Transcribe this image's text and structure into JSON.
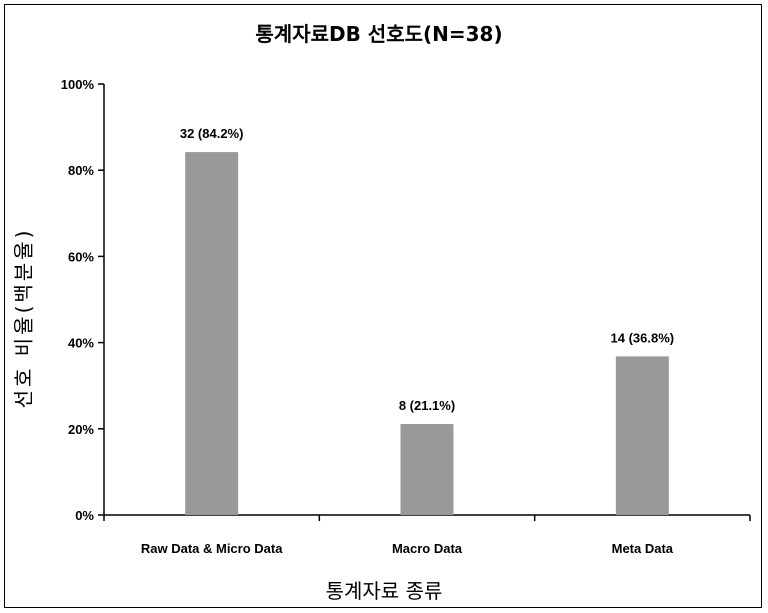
{
  "chart_data": {
    "type": "bar",
    "title": "통계자료DB 선호도(N=38)",
    "xlabel": "통계자료 종류",
    "ylabel": "선호 비율(백분율)",
    "categories": [
      "Raw Data & Micro Data",
      "Macro Data",
      "Meta Data"
    ],
    "values": [
      84.2,
      21.1,
      36.8
    ],
    "data_labels": [
      "32 (84.2%)",
      "8 (21.1%)",
      "14 (36.8%)"
    ],
    "ylim": [
      0,
      100
    ],
    "yticks": [
      "0%",
      "20%",
      "40%",
      "60%",
      "80%",
      "100%"
    ],
    "bar_color": "#999999",
    "grid": false,
    "legend": "none"
  }
}
